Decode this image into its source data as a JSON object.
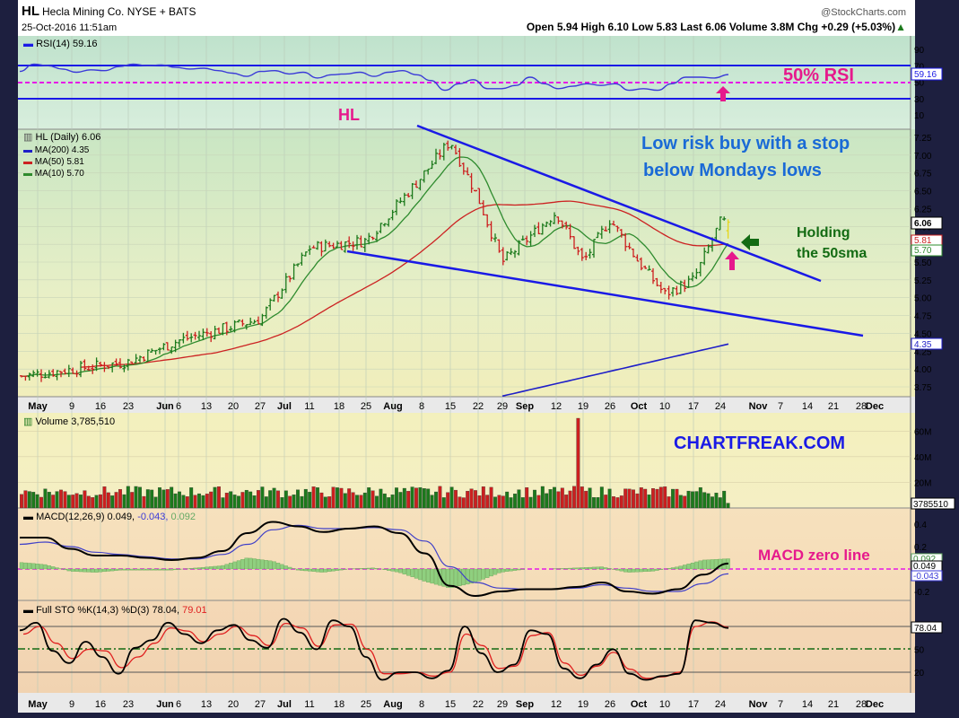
{
  "header": {
    "symbol": "HL",
    "company": "Hecla Mining Co. NYSE + BATS",
    "datetime": "25-Oct-2016 11:51am",
    "brand": "@StockCharts.com",
    "quote": "Open 5.94  High 6.10  Low 5.83  Last 6.06  Volume 3.8M  Chg +0.29 (+5.03%)",
    "quote_arrow": "▲"
  },
  "rsi": {
    "legend": "RSI(14) 59.16",
    "value_tag": "59.16",
    "axis_labels": [
      "90",
      "70",
      "50",
      "30",
      "10"
    ],
    "annotation": "50% RSI",
    "hl_annotation": "HL"
  },
  "price": {
    "legend": [
      "HL (Daily) 6.06",
      "MA(200) 4.35",
      "MA(50) 5.81",
      "MA(10) 5.70"
    ],
    "axis_labels": [
      "7.25",
      "7.00",
      "6.75",
      "6.50",
      "6.25",
      "6.00",
      "5.75",
      "5.50",
      "5.25",
      "5.00",
      "4.75",
      "4.50",
      "4.25",
      "4.00",
      "3.75"
    ],
    "tags": [
      "6.06",
      "5.81",
      "5.70",
      "4.35"
    ],
    "annotation_1": "Low risk buy with a stop",
    "annotation_2": "below Mondays lows",
    "holding_1": "Holding",
    "holding_2": "the 50sma"
  },
  "volume": {
    "legend": "Volume 3,785,510",
    "axis_labels": [
      "60M",
      "40M",
      "20M"
    ],
    "tag": "3785510",
    "watermark": "CHARTFREAK.COM"
  },
  "macd": {
    "legend_prefix": "MACD(12,26,9) 0.049,",
    "legend_signal": "-0.043,",
    "legend_hist": "0.092",
    "axis_labels": [
      "0.4",
      "0.2",
      "-0.2"
    ],
    "tags": [
      "0.092",
      "0.049",
      "-0.043"
    ],
    "annotation": "MACD zero line"
  },
  "sto": {
    "legend_prefix": "Full STO %K(14,3) %D(3) 78.04,",
    "legend_d": "79.01",
    "axis_labels": [
      "80",
      "50",
      "20"
    ],
    "tag": "78.04"
  },
  "x_axis": {
    "labels": [
      "May",
      "9",
      "16",
      "23",
      "Jun",
      "6",
      "13",
      "20",
      "27",
      "Jul",
      "11",
      "18",
      "25",
      "Aug",
      "8",
      "15",
      "22",
      "29",
      "Sep",
      "12",
      "19",
      "26",
      "Oct",
      "10",
      "17",
      "24",
      "Nov",
      "7",
      "14",
      "21",
      "28",
      "Dec"
    ]
  },
  "colors": {
    "bull": "#1c7a1c",
    "bear": "#cc1f1f",
    "ma10": "#2e8b2e",
    "ma50": "#cc2222",
    "ma200": "#1e1ec8",
    "trend": "#1a1ae6",
    "annotation_blue": "#1a6ad6",
    "annotation_magenta": "#e6198c",
    "annotation_green": "#136b13"
  },
  "chart_data": [
    {
      "type": "line",
      "name": "RSI(14)",
      "last": 59.16,
      "ylim": [
        0,
        100
      ],
      "levels": [
        70,
        50,
        30
      ],
      "series": [
        {
          "values": [
            63,
            72,
            70,
            66,
            62,
            65,
            64,
            69,
            72,
            70,
            71,
            68,
            66,
            67,
            64,
            61,
            57,
            63,
            64,
            60,
            62,
            55,
            59,
            60,
            62,
            57,
            62,
            64,
            59,
            52,
            40,
            48,
            53,
            42,
            42,
            46,
            56,
            48,
            42,
            45,
            48,
            46,
            48,
            40,
            42,
            40,
            48,
            56,
            56,
            55,
            59.16
          ]
        }
      ]
    },
    {
      "type": "candlestick",
      "name": "HL (Daily)",
      "last": 6.06,
      "open": 5.94,
      "high": 6.1,
      "low": 5.83,
      "ylim": [
        3.65,
        7.4
      ],
      "price_anchors": [
        {
          "date": "May",
          "close": 3.9
        },
        {
          "date": "May 23",
          "close": 4.1
        },
        {
          "date": "Jun 6",
          "close": 4.4
        },
        {
          "date": "Jun 27",
          "close": 4.7
        },
        {
          "date": "Jul 11",
          "close": 5.7
        },
        {
          "date": "Jul 25",
          "close": 5.8
        },
        {
          "date": "Aug 8",
          "close": 6.7
        },
        {
          "date": "Aug 15",
          "close": 7.2
        },
        {
          "date": "Aug 22",
          "close": 6.4
        },
        {
          "date": "Aug 29",
          "close": 5.5
        },
        {
          "date": "Sep 12",
          "close": 6.2
        },
        {
          "date": "Sep 19",
          "close": 5.5
        },
        {
          "date": "Sep 26",
          "close": 6.1
        },
        {
          "date": "Oct",
          "close": 5.5
        },
        {
          "date": "Oct 10",
          "close": 5.05
        },
        {
          "date": "Oct 17",
          "close": 5.25
        },
        {
          "date": "Oct 24",
          "close": 6.06
        }
      ],
      "moving_averages": [
        {
          "name": "MA(200)",
          "last": 4.35
        },
        {
          "name": "MA(50)",
          "last": 5.81
        },
        {
          "name": "MA(10)",
          "last": 5.7
        }
      ]
    },
    {
      "type": "bar",
      "name": "Volume",
      "last": 3785510,
      "ylim": [
        0,
        70000000
      ],
      "spike": {
        "date": "Sep 19",
        "value": 70000000
      }
    },
    {
      "type": "line",
      "name": "MACD(12,26,9)",
      "values": {
        "macd": 0.049,
        "signal": -0.043,
        "histogram": 0.092
      },
      "ylim": [
        -0.3,
        0.5
      ],
      "series": [
        {
          "name": "MACD",
          "values": [
            0.28,
            0.28,
            0.18,
            0.12,
            0.12,
            0.1,
            0.08,
            0.1,
            0.16,
            0.32,
            0.42,
            0.38,
            0.33,
            0.36,
            0.38,
            0.32,
            0.14,
            -0.15,
            -0.24,
            -0.2,
            -0.18,
            -0.18,
            -0.16,
            -0.12,
            -0.2,
            -0.22,
            -0.18,
            -0.05,
            0.049
          ]
        },
        {
          "name": "Signal",
          "values": [
            0.22,
            0.24,
            0.2,
            0.15,
            0.13,
            0.11,
            0.09,
            0.09,
            0.13,
            0.22,
            0.35,
            0.39,
            0.36,
            0.36,
            0.37,
            0.35,
            0.25,
            0.02,
            -0.12,
            -0.17,
            -0.18,
            -0.18,
            -0.17,
            -0.14,
            -0.17,
            -0.2,
            -0.2,
            -0.13,
            -0.043
          ]
        }
      ]
    },
    {
      "type": "line",
      "name": "Full STO %K(14,3) %D(3)",
      "values": {
        "k": 78.04,
        "d": 79.01
      },
      "ylim": [
        0,
        100
      ],
      "levels": [
        80,
        50,
        20
      ],
      "series": [
        {
          "name": "%K",
          "values": [
            75,
            85,
            48,
            32,
            60,
            40,
            18,
            52,
            62,
            85,
            70,
            58,
            75,
            82,
            62,
            52,
            90,
            72,
            50,
            88,
            80,
            40,
            10,
            20,
            20,
            12,
            22,
            80,
            45,
            20,
            30,
            75,
            70,
            25,
            12,
            30,
            50,
            18,
            10,
            15,
            18,
            88,
            85,
            78.04
          ]
        },
        {
          "name": "%D",
          "values": [
            70,
            80,
            58,
            38,
            50,
            48,
            26,
            40,
            58,
            78,
            74,
            60,
            70,
            80,
            68,
            55,
            84,
            78,
            54,
            82,
            83,
            50,
            18,
            18,
            20,
            15,
            20,
            70,
            55,
            25,
            28,
            68,
            72,
            32,
            16,
            28,
            46,
            24,
            12,
            14,
            20,
            80,
            86,
            79.01
          ]
        }
      ]
    }
  ]
}
